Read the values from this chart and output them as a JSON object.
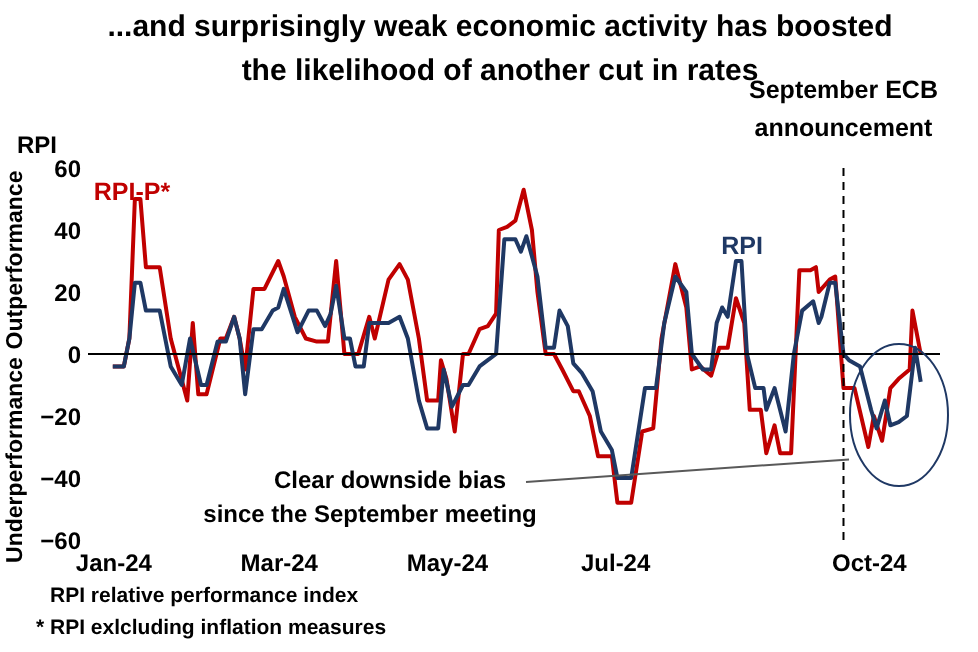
{
  "chart_data": {
    "type": "line",
    "title": "...and surprisingly weak economic activity has boosted the likelihood of another cut in rates",
    "ylabel": "RPI",
    "annotations": [
      "Outperformance",
      "Underperformance",
      {
        "text": "Clear downside bias",
        "x": "2024-09-24",
        "y": -34
      },
      "since the September meeting",
      "RPI relative performance index",
      "* RPI exlcluding inflation measures"
    ],
    "xlim": [
      "2023-12-23",
      "2024-10-27"
    ],
    "xticks": [
      {
        "value": "2024-01-01",
        "label": "Jan-24"
      },
      {
        "value": "2024-03-01",
        "label": "Mar-24"
      },
      {
        "value": "2024-05-01",
        "label": "May-24"
      },
      {
        "value": "2024-07-01",
        "label": "Jul-24"
      },
      {
        "value": "2024-10-01",
        "label": "Oct-24"
      }
    ],
    "ylim": [
      -60,
      60
    ],
    "yticks": [
      -60,
      -40,
      -20,
      0,
      20,
      40,
      60
    ],
    "line_style": "solid",
    "ref_lines": [
      {
        "axis": "y",
        "value": 0,
        "color": "#000000",
        "line_style": "solid"
      },
      {
        "axis": "x",
        "value": "2024-09-22",
        "label": "September ECB announcement",
        "color": "#000000",
        "line_style": "dashed"
      }
    ],
    "series": [
      {
        "name": "RPI-P*",
        "color": "#c00000",
        "x": [
          "2024-01-01",
          "2024-01-05",
          "2024-01-07",
          "2024-01-09",
          "2024-01-11",
          "2024-01-13",
          "2024-01-18",
          "2024-01-22",
          "2024-01-25",
          "2024-01-28",
          "2024-01-30",
          "2024-02-01",
          "2024-02-04",
          "2024-02-09",
          "2024-02-11",
          "2024-02-14",
          "2024-02-16",
          "2024-02-18",
          "2024-02-21",
          "2024-02-25",
          "2024-03-01",
          "2024-03-03",
          "2024-03-07",
          "2024-03-11",
          "2024-03-15",
          "2024-03-19",
          "2024-03-22",
          "2024-03-25",
          "2024-03-28",
          "2024-03-30",
          "2024-04-03",
          "2024-04-05",
          "2024-04-10",
          "2024-04-14",
          "2024-04-17",
          "2024-04-21",
          "2024-04-24",
          "2024-04-28",
          "2024-04-29",
          "2024-05-01",
          "2024-05-04",
          "2024-05-07",
          "2024-05-09",
          "2024-05-13",
          "2024-05-16",
          "2024-05-19",
          "2024-05-20",
          "2024-05-23",
          "2024-05-26",
          "2024-05-29",
          "2024-06-01",
          "2024-06-03",
          "2024-06-06",
          "2024-06-09",
          "2024-06-12",
          "2024-06-16",
          "2024-06-18",
          "2024-06-22",
          "2024-06-25",
          "2024-06-30",
          "2024-07-02",
          "2024-07-07",
          "2024-07-11",
          "2024-07-15",
          "2024-07-18",
          "2024-07-23",
          "2024-07-27",
          "2024-07-29",
          "2024-08-01",
          "2024-08-05",
          "2024-08-08",
          "2024-08-11",
          "2024-08-14",
          "2024-08-17",
          "2024-08-19",
          "2024-08-23",
          "2024-08-25",
          "2024-08-28",
          "2024-08-30",
          "2024-09-03",
          "2024-09-06",
          "2024-09-10",
          "2024-09-12",
          "2024-09-13",
          "2024-09-17",
          "2024-09-19",
          "2024-09-22",
          "2024-09-26",
          "2024-10-01",
          "2024-10-03",
          "2024-10-06",
          "2024-10-09",
          "2024-10-12",
          "2024-10-16",
          "2024-10-17",
          "2024-10-20"
        ],
        "values": [
          -4,
          -4,
          5,
          50,
          50,
          28,
          28,
          5,
          -5,
          -15,
          10,
          -13,
          -13,
          5,
          5,
          12,
          5,
          -5,
          21,
          21,
          30,
          25,
          12,
          5,
          4,
          4,
          30,
          0,
          0,
          0,
          12,
          5,
          24,
          29,
          24,
          5,
          -15,
          -15,
          -2,
          -8,
          -25,
          0,
          0,
          8,
          9,
          13,
          40,
          41,
          43,
          53,
          40,
          20,
          0,
          0,
          -5,
          -12,
          -12,
          -20,
          -33,
          -33,
          -48,
          -48,
          -25,
          -24,
          5,
          29,
          15,
          -5,
          -4,
          -7,
          2,
          2,
          18,
          10,
          -18,
          -18,
          -32,
          -23,
          -32,
          -32,
          27,
          27,
          28,
          20,
          24,
          25,
          -11,
          -11,
          -30,
          -20,
          -28,
          -11,
          -8,
          -5,
          14,
          0
        ]
      },
      {
        "name": "RPI",
        "color": "#1f3864",
        "x": [
          "2024-01-01",
          "2024-01-05",
          "2024-01-07",
          "2024-01-09",
          "2024-01-11",
          "2024-01-13",
          "2024-01-18",
          "2024-01-22",
          "2024-01-26",
          "2024-01-29",
          "2024-02-02",
          "2024-02-04",
          "2024-02-08",
          "2024-02-11",
          "2024-02-14",
          "2024-02-16",
          "2024-02-18",
          "2024-02-21",
          "2024-02-24",
          "2024-02-28",
          "2024-03-01",
          "2024-03-03",
          "2024-03-08",
          "2024-03-12",
          "2024-03-15",
          "2024-03-18",
          "2024-03-20",
          "2024-03-22",
          "2024-03-25",
          "2024-03-27",
          "2024-03-29",
          "2024-04-01",
          "2024-04-03",
          "2024-04-10",
          "2024-04-14",
          "2024-04-17",
          "2024-04-21",
          "2024-04-24",
          "2024-04-28",
          "2024-04-30",
          "2024-05-03",
          "2024-05-07",
          "2024-05-09",
          "2024-05-13",
          "2024-05-16",
          "2024-05-19",
          "2024-05-22",
          "2024-05-26",
          "2024-05-28",
          "2024-05-30",
          "2024-06-03",
          "2024-06-06",
          "2024-06-09",
          "2024-06-11",
          "2024-06-14",
          "2024-06-16",
          "2024-06-19",
          "2024-06-23",
          "2024-06-26",
          "2024-06-30",
          "2024-07-02",
          "2024-07-07",
          "2024-07-12",
          "2024-07-16",
          "2024-07-19",
          "2024-07-23",
          "2024-07-27",
          "2024-07-29",
          "2024-08-02",
          "2024-08-05",
          "2024-08-07",
          "2024-08-09",
          "2024-08-11",
          "2024-08-14",
          "2024-08-16",
          "2024-08-18",
          "2024-08-21",
          "2024-08-24",
          "2024-08-25",
          "2024-08-28",
          "2024-09-01",
          "2024-09-04",
          "2024-09-07",
          "2024-09-11",
          "2024-09-13",
          "2024-09-14",
          "2024-09-17",
          "2024-09-19",
          "2024-09-22",
          "2024-09-24",
          "2024-09-28",
          "2024-10-02",
          "2024-10-04",
          "2024-10-07",
          "2024-10-09",
          "2024-10-12",
          "2024-10-15",
          "2024-10-18",
          "2024-10-20"
        ],
        "values": [
          -4,
          -4,
          5,
          23,
          23,
          14,
          14,
          -4,
          -10,
          5,
          -10,
          -10,
          4,
          4,
          12,
          5,
          -13,
          8,
          8,
          14,
          15,
          21,
          7,
          14,
          14,
          9,
          13,
          22,
          5,
          5,
          -4,
          -4,
          10,
          10,
          12,
          5,
          -15,
          -24,
          -24,
          -5,
          -17,
          -10,
          -10,
          -4,
          -2,
          0,
          37,
          37,
          33,
          38,
          25,
          2,
          2,
          14,
          9,
          -3,
          -6,
          -12,
          -25,
          -31,
          -40,
          -40,
          -11,
          -11,
          10,
          25,
          20,
          0,
          -5,
          -5,
          10,
          15,
          12,
          30,
          30,
          0,
          -11,
          -11,
          -18,
          -11,
          -25,
          0,
          14,
          17,
          10,
          12,
          23,
          23,
          0,
          -2,
          -4,
          -18,
          -24,
          -15,
          -23,
          -22,
          -20,
          2,
          -9
        ]
      }
    ]
  }
}
